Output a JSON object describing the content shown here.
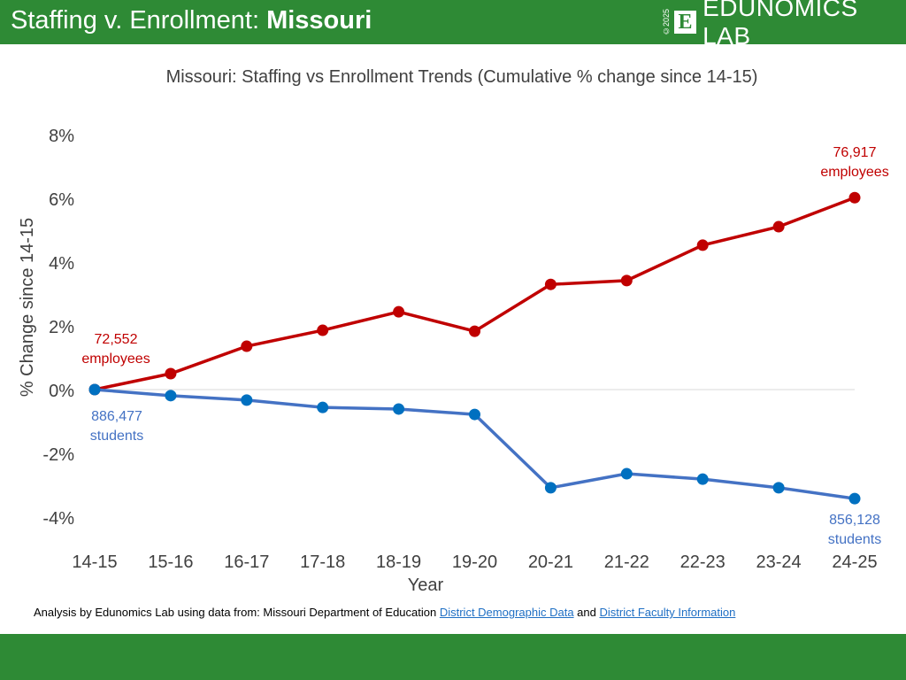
{
  "header": {
    "title_prefix": "Staffing v. Enrollment: ",
    "title_state": "Missouri",
    "logo_copyright": "©2025",
    "logo_letter": "E",
    "logo_name": "EDUNOMICS LAB"
  },
  "footer": {
    "note_prefix": "Analysis by Edunomics Lab using data from: Missouri Department of Education ",
    "link1": "District Demographic Data",
    "note_mid": " and ",
    "link2": "District Faculty Information"
  },
  "colors": {
    "brand_green": "#2e8a35",
    "staff": "#c00000",
    "students_line": "#4472c4",
    "students_marker": "#0070c0"
  },
  "chart_data": {
    "type": "line",
    "title": "Missouri: Staffing vs Enrollment Trends (Cumulative % change since 14-15)",
    "xlabel": "Year",
    "ylabel": "% Change since 14-15",
    "categories": [
      "14-15",
      "15-16",
      "16-17",
      "17-18",
      "18-19",
      "19-20",
      "20-21",
      "21-22",
      "22-23",
      "23-24",
      "24-25"
    ],
    "ylim": [
      -4,
      8
    ],
    "yticks": [
      -4,
      -2,
      0,
      2,
      4,
      6,
      8
    ],
    "ytick_labels": [
      "-4%",
      "-2%",
      "0%",
      "2%",
      "4%",
      "6%",
      "8%"
    ],
    "grid": false,
    "series": [
      {
        "key": "staff",
        "values": [
          0,
          0.5,
          1.36,
          1.86,
          2.44,
          1.83,
          3.3,
          3.42,
          4.53,
          5.11,
          6.02
        ]
      },
      {
        "key": "students",
        "values": [
          0,
          -0.19,
          -0.33,
          -0.56,
          -0.61,
          -0.78,
          -3.08,
          -2.64,
          -2.81,
          -3.08,
          -3.42
        ]
      }
    ],
    "annotations": {
      "staff_start": [
        "72,552",
        "employees"
      ],
      "staff_end": [
        "76,917",
        "employees"
      ],
      "students_start": [
        "886,477",
        "students"
      ],
      "students_end": [
        "856,128",
        "students"
      ]
    }
  }
}
